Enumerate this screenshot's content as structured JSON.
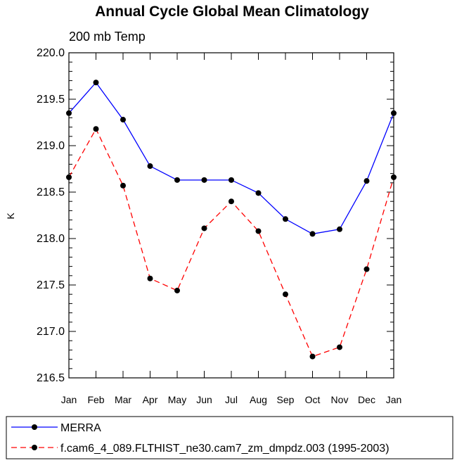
{
  "chart_data": {
    "type": "line",
    "title": "Annual Cycle Global Mean Climatology",
    "subtitle": "200 mb Temp",
    "ylabel": "K",
    "xlabel": "",
    "categories": [
      "Jan",
      "Feb",
      "Mar",
      "Apr",
      "May",
      "Jun",
      "Jul",
      "Aug",
      "Sep",
      "Oct",
      "Nov",
      "Dec",
      "Jan"
    ],
    "ylim": [
      216.5,
      220.0
    ],
    "yticks": [
      "216.5",
      "217.0",
      "217.5",
      "218.0",
      "218.5",
      "219.0",
      "219.5",
      "220.0"
    ],
    "grid": false,
    "legend_position": "bottom",
    "series": [
      {
        "name": "MERRA",
        "color": "#0000ff",
        "dash": "solid",
        "marker": "circle",
        "values": [
          219.35,
          219.68,
          219.28,
          218.78,
          218.63,
          218.63,
          218.63,
          218.49,
          218.21,
          218.05,
          218.1,
          218.62,
          219.35
        ]
      },
      {
        "name": "f.cam6_4_089.FLTHIST_ne30.cam7_zm_dmpdz.003 (1995-2003)",
        "color": "#ff0000",
        "dash": "dashed",
        "marker": "circle",
        "values": [
          218.66,
          219.18,
          218.57,
          217.57,
          217.44,
          218.11,
          218.4,
          218.08,
          217.4,
          216.73,
          216.83,
          217.67,
          218.66
        ]
      }
    ]
  }
}
